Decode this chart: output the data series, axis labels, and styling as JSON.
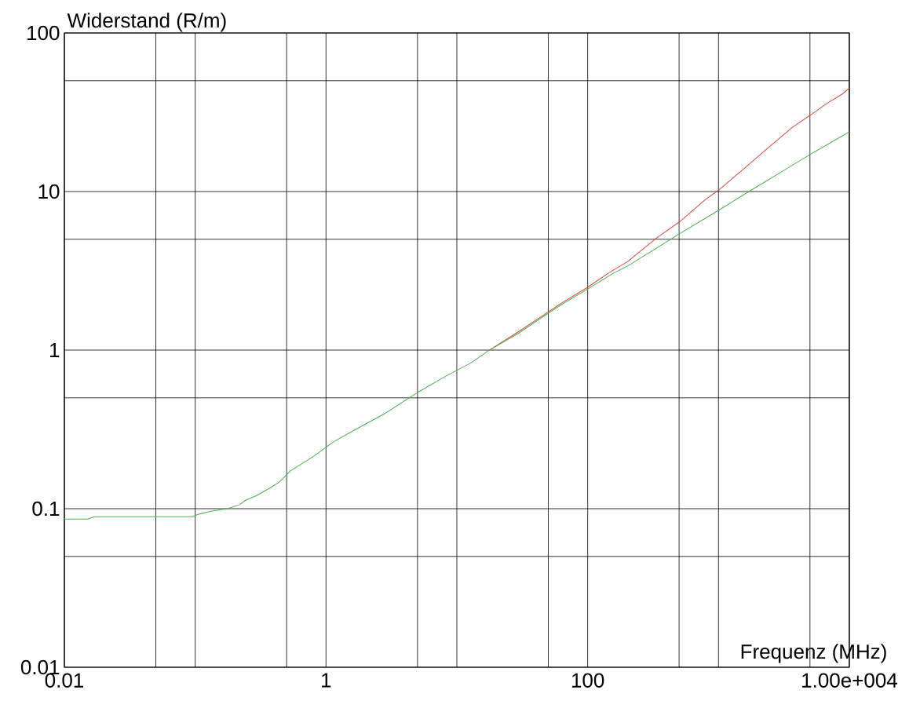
{
  "chart_data": {
    "type": "line",
    "xlabel": "Frequenz (MHz)",
    "ylabel": "Widerstand (R/m)",
    "log": "xy",
    "grid": true,
    "marker": "none",
    "line_style": "solid",
    "xlim": [
      0.01,
      10000
    ],
    "ylim": [
      0.01,
      100
    ],
    "xticks": [
      {
        "value": 0.01,
        "label": "0.01"
      },
      {
        "value": 0.05,
        "label": null
      },
      {
        "value": 0.1,
        "label": null
      },
      {
        "value": 0.5,
        "label": null
      },
      {
        "value": 1,
        "label": "1"
      },
      {
        "value": 5,
        "label": null
      },
      {
        "value": 10,
        "label": null
      },
      {
        "value": 50,
        "label": null
      },
      {
        "value": 100,
        "label": "100"
      },
      {
        "value": 500,
        "label": null
      },
      {
        "value": 1000,
        "label": null
      },
      {
        "value": 5000,
        "label": null
      },
      {
        "value": 10000,
        "label": "1.00e+004"
      }
    ],
    "yticks": [
      {
        "value": 0.01,
        "label": "0.01"
      },
      {
        "value": 0.05,
        "label": null
      },
      {
        "value": 0.1,
        "label": "0.1"
      },
      {
        "value": 0.5,
        "label": null
      },
      {
        "value": 1,
        "label": "1"
      },
      {
        "value": 5,
        "label": null
      },
      {
        "value": 10,
        "label": "10"
      },
      {
        "value": 50,
        "label": null
      },
      {
        "value": 100,
        "label": "100"
      }
    ],
    "series": [
      {
        "color": "#e04a3a",
        "x": [
          17.4,
          29.3,
          48.9,
          64.4,
          100,
          144,
          202,
          343,
          500,
          785,
          1000,
          1610,
          2440,
          3690,
          5000,
          6680,
          8810,
          10000
        ],
        "values": [
          0.99,
          1.3,
          1.72,
          2.0,
          2.49,
          3.06,
          3.62,
          5.16,
          6.41,
          8.83,
          10.2,
          14.2,
          19.1,
          25.5,
          30.2,
          35.8,
          41.1,
          45
        ]
      },
      {
        "color": "#4cb050",
        "x": [
          0.01,
          0.0151,
          0.0169,
          0.095,
          0.105,
          0.13,
          0.177,
          0.218,
          0.243,
          0.295,
          0.378,
          0.44,
          0.534,
          0.81,
          1.14,
          1.73,
          2.8,
          5.0,
          8.1,
          12.8,
          17.4,
          29.3,
          48.9,
          64.4,
          100,
          158,
          202,
          500,
          1000,
          1775,
          2800,
          5000,
          8810,
          10000
        ],
        "values": [
          0.086,
          0.086,
          0.089,
          0.089,
          0.092,
          0.096,
          0.1,
          0.106,
          0.113,
          0.121,
          0.136,
          0.147,
          0.173,
          0.215,
          0.264,
          0.32,
          0.397,
          0.54,
          0.68,
          0.83,
          0.99,
          1.27,
          1.69,
          1.96,
          2.43,
          3.06,
          3.39,
          5.4,
          7.61,
          10.2,
          12.8,
          17.1,
          22.4,
          23.8
        ]
      }
    ]
  }
}
